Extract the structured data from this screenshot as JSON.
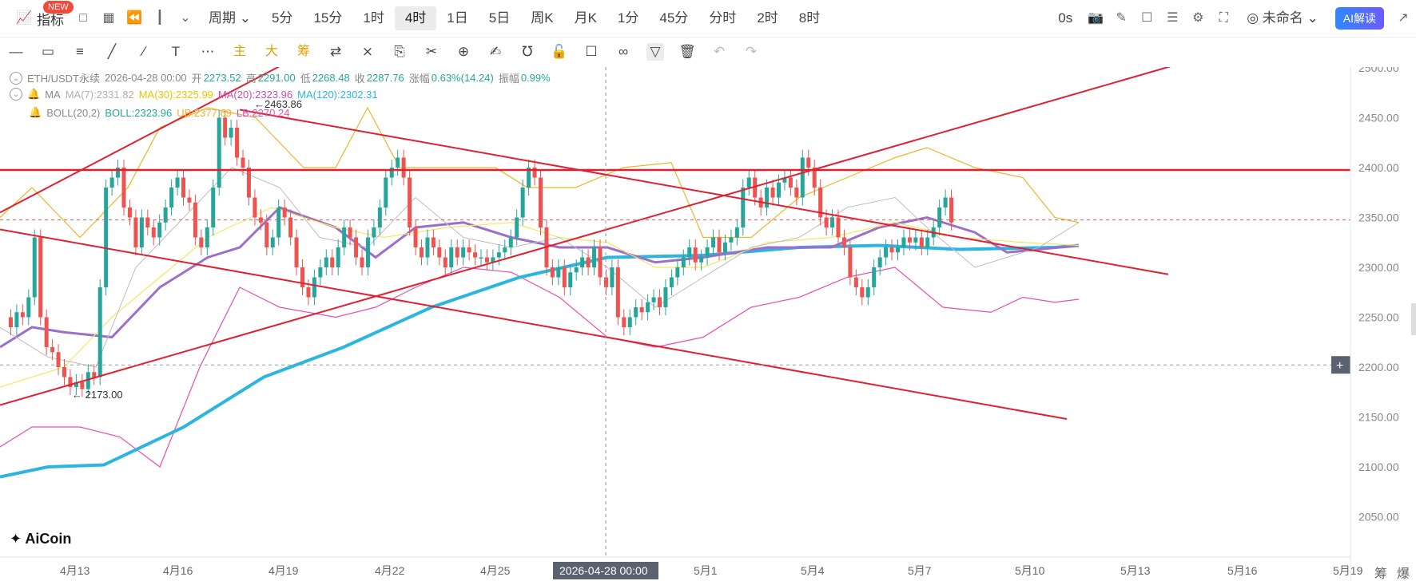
{
  "toolbar": {
    "indicator_label": "指标",
    "new_badge": "NEW",
    "period_label": "周期",
    "timeframes": [
      "5分",
      "15分",
      "1时",
      "4时",
      "1日",
      "5日",
      "周K",
      "月K",
      "1分",
      "45分",
      "分时",
      "2时",
      "8时"
    ],
    "active_timeframe": "4时",
    "countdown": "0s",
    "account": "未命名",
    "ai_button": "AI解读"
  },
  "draw_tools": {
    "main_label": "主",
    "big_label": "大",
    "chip_label": "筹"
  },
  "legend": {
    "symbol": "ETH/USDT永续",
    "datetime": "2026-04-28 00:00",
    "open_label": "开",
    "open": "2273.52",
    "high_label": "高",
    "high": "2291.00",
    "low_label": "低",
    "low": "2268.48",
    "close_label": "收",
    "close": "2287.76",
    "change_label": "涨幅",
    "change": "0.63%(14.24)",
    "amp_label": "振幅",
    "amp": "0.99%",
    "ma_name": "MA",
    "ma7": "MA(7):2331.82",
    "ma30": "MA(30):2325.99",
    "ma20": "MA(20):2323.96",
    "ma120": "MA(120):2302.31",
    "boll_name": "BOLL(20,2)",
    "boll": "BOLL:2323.96",
    "ub": "UB:2377.69",
    "lb": "LB:2270.24"
  },
  "chart_data": {
    "type": "candlestick",
    "y_axis": [
      "2500.00",
      "2450.00",
      "2400.00",
      "2350.00",
      "2300.00",
      "2250.00",
      "2200.00",
      "2150.00",
      "2100.00",
      "2050.00"
    ],
    "x_axis": [
      "4月13",
      "4月16",
      "4月19",
      "4月22",
      "4月25",
      "5月1",
      "5月4",
      "5月7",
      "5月10",
      "5月13",
      "5月16",
      "5月19"
    ],
    "crosshair_date": "2026-04-28 00:00",
    "crosshair_price": "2202.21",
    "horizontal_line_price": "2397.56",
    "last_price": "2347.51",
    "high_marker": "2463.86",
    "low_marker": "2173.00",
    "colors": {
      "up": "#26a69a",
      "down": "#ef5350",
      "ma7": "#bdbdbd",
      "ma30": "#f5e663",
      "ma20": "#9c6fc8",
      "ma120": "#2bb5e0",
      "boll_ub": "#f0b429",
      "boll_lb": "#e64fb4",
      "trend": "#e02030"
    }
  },
  "right_bottom": {
    "chip": "筹",
    "burst": "爆"
  },
  "logo_text": "AiCoin"
}
